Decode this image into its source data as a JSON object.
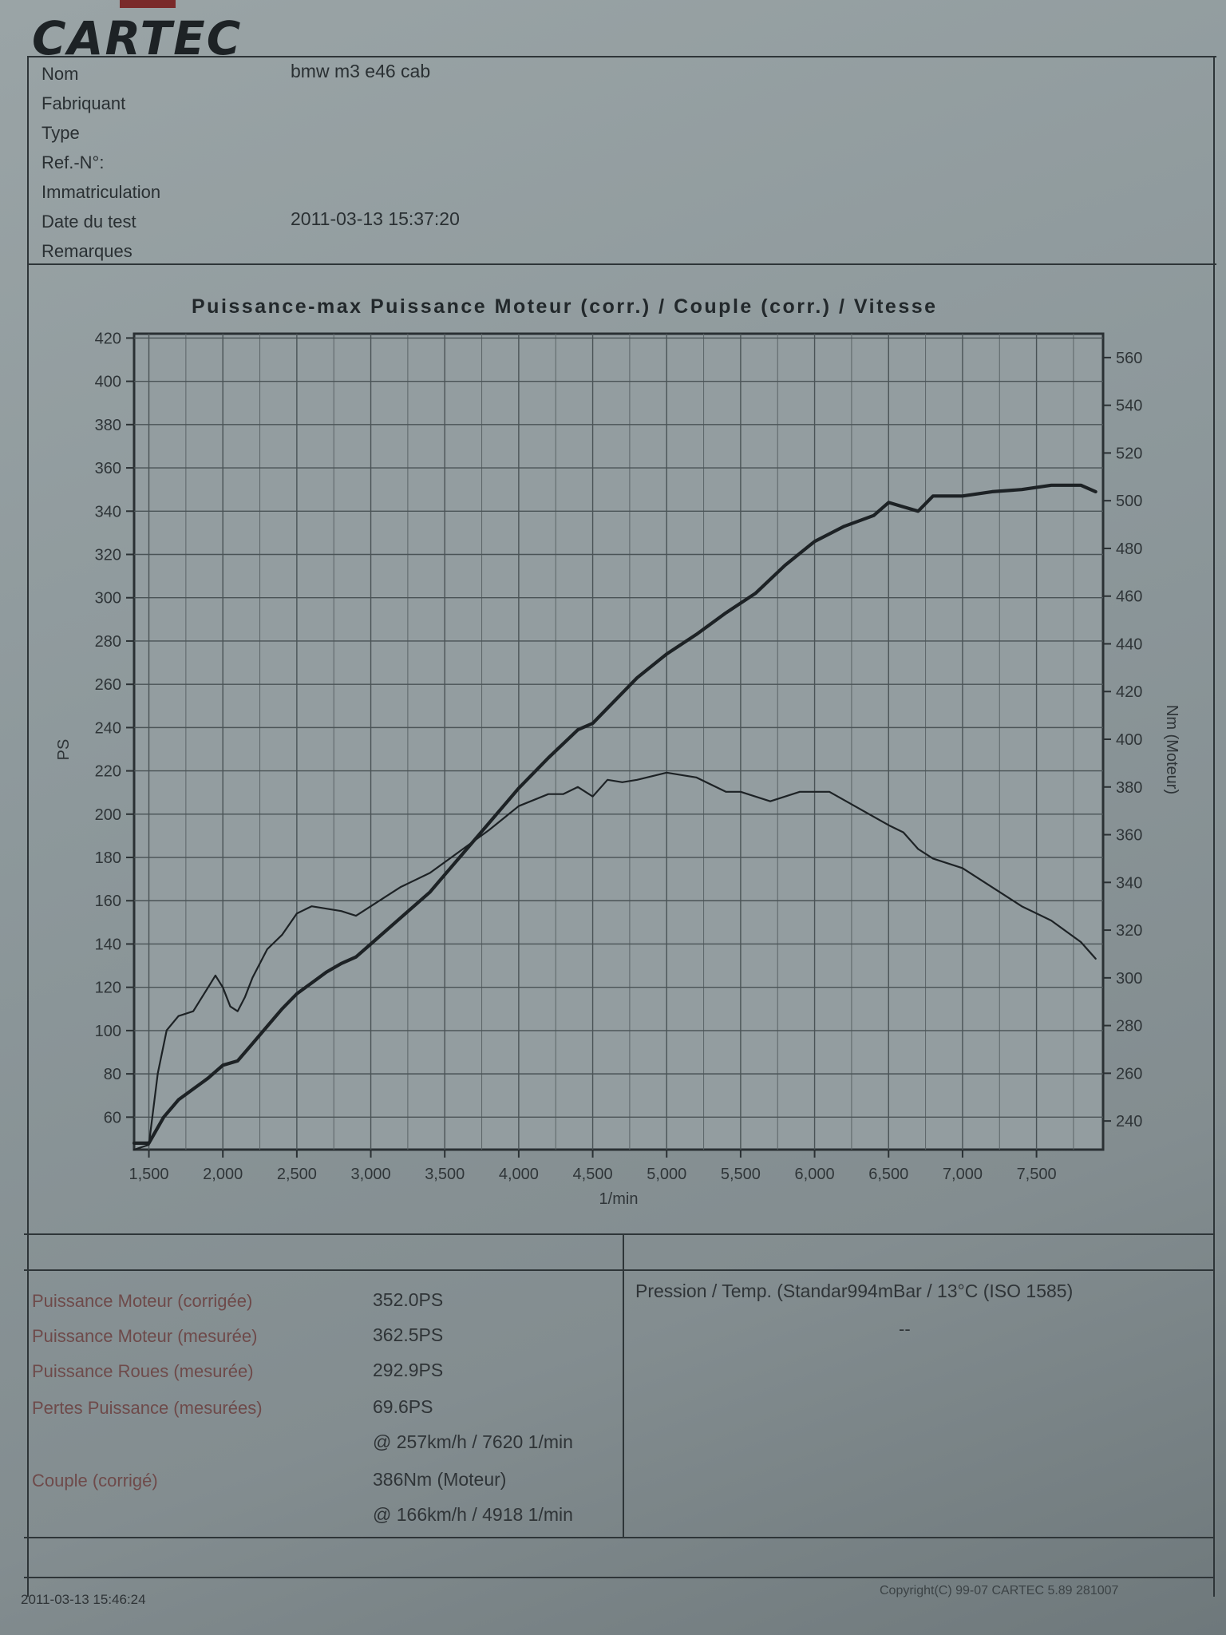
{
  "header": {
    "logo": "CARTEC",
    "fields": [
      {
        "label": "Nom",
        "value": "bmw m3 e46 cab"
      },
      {
        "label": "Fabriquant",
        "value": ""
      },
      {
        "label": "Type",
        "value": ""
      },
      {
        "label": "Ref.-N°:",
        "value": ""
      },
      {
        "label": "Immatriculation",
        "value": ""
      },
      {
        "label": "Date du test",
        "value": "2011-03-13 15:37:20"
      },
      {
        "label": "Remarques",
        "value": ""
      }
    ]
  },
  "chart_data": {
    "type": "line",
    "title": "Puissance-max Puissance Moteur (corr.) / Couple (corr.) / Vitesse",
    "xlabel": "1/min",
    "ylabel_left": "PS",
    "ylabel_right": "Nm (Moteur)",
    "xlim": [
      1400,
      7950
    ],
    "ylim_left": [
      45,
      422
    ],
    "ylim_right": [
      228,
      570
    ],
    "x_ticks": [
      1500,
      2000,
      2500,
      3000,
      3500,
      4000,
      4500,
      5000,
      5500,
      6000,
      6500,
      7000,
      7500
    ],
    "x_tick_labels": [
      "1,500",
      "2,000",
      "2,500",
      "3,000",
      "3,500",
      "4,000",
      "4,500",
      "5,000",
      "5,500",
      "6,000",
      "6,500",
      "7,000",
      "7,500"
    ],
    "y_left_ticks": [
      60,
      80,
      100,
      120,
      140,
      160,
      180,
      200,
      220,
      240,
      260,
      280,
      300,
      320,
      340,
      360,
      380,
      400,
      420
    ],
    "y_right_ticks": [
      240,
      260,
      280,
      300,
      320,
      340,
      360,
      380,
      400,
      420,
      440,
      460,
      480,
      500,
      520,
      540,
      560
    ],
    "grid": true,
    "series": [
      {
        "axis": "left",
        "x": [
          1400,
          1500,
          1600,
          1700,
          1800,
          1900,
          2000,
          2100,
          2200,
          2300,
          2400,
          2500,
          2600,
          2700,
          2800,
          2900,
          3000,
          3200,
          3400,
          3500,
          3600,
          3800,
          4000,
          4200,
          4400,
          4500,
          4600,
          4800,
          5000,
          5200,
          5400,
          5600,
          5800,
          6000,
          6200,
          6400,
          6500,
          6600,
          6700,
          6800,
          7000,
          7200,
          7400,
          7600,
          7700,
          7800,
          7900
        ],
        "y": [
          48,
          48,
          60,
          68,
          73,
          78,
          84,
          86,
          94,
          102,
          110,
          117,
          122,
          127,
          131,
          134,
          140,
          152,
          164,
          172,
          180,
          196,
          212,
          226,
          239,
          242,
          249,
          263,
          274,
          283,
          293,
          302,
          315,
          326,
          333,
          338,
          344,
          342,
          340,
          347,
          347,
          349,
          350,
          352,
          352,
          352,
          349
        ]
      },
      {
        "axis": "right",
        "x": [
          1400,
          1500,
          1560,
          1620,
          1700,
          1800,
          1900,
          1950,
          2000,
          2050,
          2100,
          2150,
          2200,
          2300,
          2400,
          2500,
          2600,
          2700,
          2800,
          2900,
          3000,
          3100,
          3200,
          3400,
          3600,
          3800,
          4000,
          4200,
          4300,
          4400,
          4500,
          4600,
          4700,
          4800,
          5000,
          5200,
          5400,
          5500,
          5700,
          5900,
          6100,
          6300,
          6500,
          6600,
          6700,
          6800,
          7000,
          7200,
          7400,
          7600,
          7800,
          7900
        ],
        "y": [
          228,
          230,
          260,
          278,
          284,
          286,
          296,
          301,
          296,
          288,
          286,
          292,
          300,
          312,
          318,
          327,
          330,
          329,
          328,
          326,
          330,
          334,
          338,
          344,
          353,
          362,
          372,
          377,
          377,
          380,
          376,
          383,
          382,
          383,
          386,
          384,
          378,
          378,
          374,
          378,
          378,
          371,
          364,
          361,
          354,
          350,
          346,
          338,
          330,
          324,
          315,
          308
        ]
      }
    ]
  },
  "results": {
    "rows": [
      {
        "label": "Puissance Moteur (corrigée)",
        "value": "352.0PS"
      },
      {
        "label": "Puissance Moteur (mesurée)",
        "value": "362.5PS"
      },
      {
        "label": "Puissance Roues (mesurée)",
        "value": "292.9PS"
      },
      {
        "label": "Pertes Puissance (mesurées)",
        "value": "69.6PS"
      },
      {
        "label": "",
        "value": "@ 257km/h / 7620 1/min"
      },
      {
        "label": "Couple (corrigé)",
        "value": "386Nm (Moteur)"
      },
      {
        "label": "",
        "value": "@ 166km/h / 4918 1/min"
      }
    ],
    "pression": "Pression / Temp. (Standar994mBar / 13°C   (ISO 1585)",
    "pression_value": "--"
  },
  "footer": {
    "date": "2011-03-13 15:46:24",
    "copyright": "Copyright(C) 99-07 CARTEC 5.89 281007"
  }
}
